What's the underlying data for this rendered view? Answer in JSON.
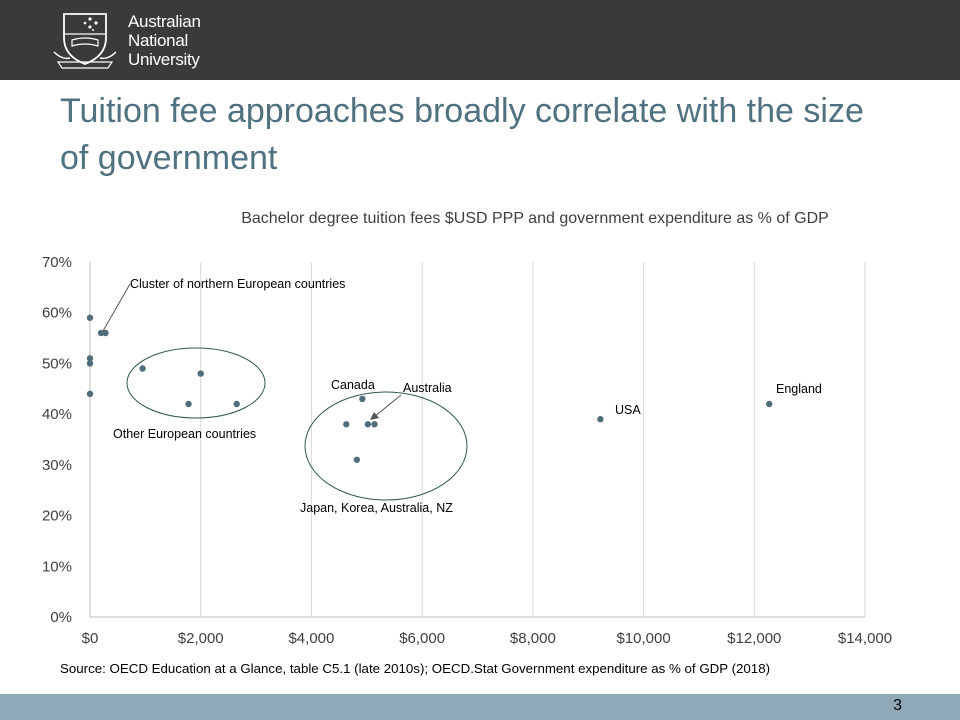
{
  "header": {
    "logo_lines": [
      "Australian",
      "National",
      "University"
    ]
  },
  "slide": {
    "title": "Tuition fee approaches broadly correlate with the size of government",
    "source": "Source: OECD Education at a Glance, table C5.1 (late 2010s); OECD.Stat Government expenditure as % of GDP (2018)",
    "page_number": "3"
  },
  "colors": {
    "header_bg": "#3a3a3a",
    "title": "#4f7180",
    "marker": "#4f6d7a",
    "footer": "#8fa9b8",
    "grid": "#d9d9d9"
  },
  "chart_data": {
    "type": "scatter",
    "title": "Bachelor degree tuition fees $USD PPP and government expenditure as % of GDP",
    "xlabel": "",
    "ylabel": "",
    "xlim": [
      0,
      14000
    ],
    "ylim": [
      0,
      0.7
    ],
    "x_ticks": [
      0,
      2000,
      4000,
      6000,
      8000,
      10000,
      12000,
      14000
    ],
    "x_tick_labels": [
      "$0",
      "$2,000",
      "$4,000",
      "$6,000",
      "$8,000",
      "$10,000",
      "$12,000",
      "$14,000"
    ],
    "y_ticks": [
      0,
      0.1,
      0.2,
      0.3,
      0.4,
      0.5,
      0.6,
      0.7
    ],
    "y_tick_labels": [
      "0%",
      "10%",
      "20%",
      "30%",
      "40%",
      "50%",
      "60%",
      "70%"
    ],
    "grid": "vertical",
    "points": [
      {
        "x": 0,
        "y": 0.59
      },
      {
        "x": 0,
        "y": 0.51
      },
      {
        "x": 0,
        "y": 0.5
      },
      {
        "x": 0,
        "y": 0.44
      },
      {
        "x": 200,
        "y": 0.56
      },
      {
        "x": 280,
        "y": 0.56
      },
      {
        "x": 950,
        "y": 0.49
      },
      {
        "x": 1780,
        "y": 0.42
      },
      {
        "x": 2000,
        "y": 0.48
      },
      {
        "x": 2650,
        "y": 0.42
      },
      {
        "x": 4630,
        "y": 0.38
      },
      {
        "x": 4820,
        "y": 0.31
      },
      {
        "x": 4920,
        "y": 0.43
      },
      {
        "x": 5020,
        "y": 0.38
      },
      {
        "x": 5140,
        "y": 0.38
      },
      {
        "x": 9220,
        "y": 0.39
      },
      {
        "x": 12270,
        "y": 0.42
      }
    ],
    "annotations": [
      {
        "text": "Cluster of northern European countries"
      },
      {
        "text": "Other European countries"
      },
      {
        "text": "Canada"
      },
      {
        "text": "Australia"
      },
      {
        "text": "Japan, Korea, Australia, NZ"
      },
      {
        "text": "USA"
      },
      {
        "text": "England"
      }
    ]
  }
}
